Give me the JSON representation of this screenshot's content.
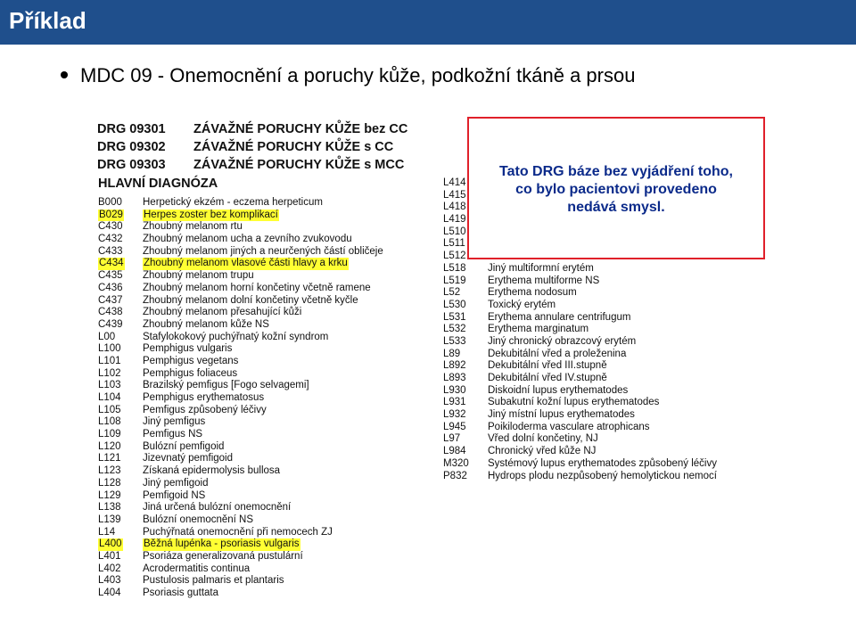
{
  "slide_title": "Příklad",
  "bullet_text": "MDC 09 - Onemocnění a poruchy kůže, podkožní tkáně a prsou",
  "drg_rows": [
    {
      "code": "DRG 09301",
      "name": "ZÁVAŽNÉ PORUCHY KŮŽE bez CC"
    },
    {
      "code": "DRG 09302",
      "name": "ZÁVAŽNÉ PORUCHY KŮŽE s CC"
    },
    {
      "code": "DRG 09303",
      "name": "ZÁVAŽNÉ PORUCHY KŮŽE s MCC"
    }
  ],
  "main_diagnosis_heading": "HLAVNÍ DIAGNÓZA",
  "left_diagnoses": [
    {
      "code": "B000",
      "name": "Herpetický ekzém - eczema herpeticum",
      "highlight": false
    },
    {
      "code": "B029",
      "name": "Herpes zoster bez komplikací",
      "highlight": true
    },
    {
      "code": "C430",
      "name": "Zhoubný melanom rtu",
      "highlight": false
    },
    {
      "code": "C432",
      "name": "Zhoubný melanom ucha a zevního zvukovodu",
      "highlight": false
    },
    {
      "code": "C433",
      "name": "Zhoubný melanom jiných a neurčených částí obličeje",
      "highlight": false
    },
    {
      "code": "C434",
      "name": "Zhoubný melanom vlasové části hlavy a krku",
      "highlight": true
    },
    {
      "code": "C435",
      "name": "Zhoubný melanom trupu",
      "highlight": false
    },
    {
      "code": "C436",
      "name": "Zhoubný melanom horní končetiny včetně ramene",
      "highlight": false
    },
    {
      "code": "C437",
      "name": "Zhoubný melanom dolní končetiny včetně kyčle",
      "highlight": false
    },
    {
      "code": "C438",
      "name": "Zhoubný melanom přesahující kůži",
      "highlight": false
    },
    {
      "code": "C439",
      "name": "Zhoubný melanom kůže NS",
      "highlight": false
    },
    {
      "code": "L00",
      "name": "Stafylokokový puchýřnatý kožní syndrom",
      "highlight": false
    },
    {
      "code": "L100",
      "name": "Pemphigus vulgaris",
      "highlight": false
    },
    {
      "code": "L101",
      "name": "Pemphigus vegetans",
      "highlight": false
    },
    {
      "code": "L102",
      "name": "Pemphigus foliaceus",
      "highlight": false
    },
    {
      "code": "L103",
      "name": "Brazilský pemfigus [Fogo selvagemi]",
      "highlight": false
    },
    {
      "code": "L104",
      "name": "Pemphigus erythematosus",
      "highlight": false
    },
    {
      "code": "L105",
      "name": "Pemfigus způsobený léčivy",
      "highlight": false
    },
    {
      "code": "L108",
      "name": "Jiný pemfigus",
      "highlight": false
    },
    {
      "code": "L109",
      "name": "Pemfigus NS",
      "highlight": false
    },
    {
      "code": "L120",
      "name": "Bulózní pemfigoid",
      "highlight": false
    },
    {
      "code": "L121",
      "name": "Jizevnatý pemfigoid",
      "highlight": false
    },
    {
      "code": "L123",
      "name": "Získaná epidermolysis bullosa",
      "highlight": false
    },
    {
      "code": "L128",
      "name": "Jiný pemfigoid",
      "highlight": false
    },
    {
      "code": "L129",
      "name": "Pemfigoid NS",
      "highlight": false
    },
    {
      "code": "L138",
      "name": "Jiná určená bulózní onemocnění",
      "highlight": false
    },
    {
      "code": "L139",
      "name": "Bulózní onemocnění NS",
      "highlight": false
    },
    {
      "code": "L14",
      "name": "Puchýřnatá onemocnění při nemocech ZJ",
      "highlight": false
    },
    {
      "code": "L400",
      "name": "Běžná lupénka - psoriasis vulgaris",
      "highlight": true
    },
    {
      "code": "L401",
      "name": "Psoriáza generalizovaná pustulární",
      "highlight": false
    },
    {
      "code": "L402",
      "name": "Acrodermatitis continua",
      "highlight": false
    },
    {
      "code": "L403",
      "name": "Pustulosis palmaris et plantaris",
      "highlight": false
    },
    {
      "code": "L404",
      "name": "Psoriasis guttata",
      "highlight": false
    }
  ],
  "right_diagnoses": [
    {
      "code": "L414",
      "name": ""
    },
    {
      "code": "L415",
      "name": ""
    },
    {
      "code": "L418",
      "name": ""
    },
    {
      "code": "L419",
      "name": ""
    },
    {
      "code": "L510",
      "name": ""
    },
    {
      "code": "L511",
      "name": ""
    },
    {
      "code": "L512",
      "name": ""
    },
    {
      "code": "L518",
      "name": "Jiný multiformní erytém"
    },
    {
      "code": "L519",
      "name": "Erythema multiforme NS"
    },
    {
      "code": "L52",
      "name": "Erythema nodosum"
    },
    {
      "code": "L530",
      "name": "Toxický erytém"
    },
    {
      "code": "L531",
      "name": "Erythema annulare centrifugum"
    },
    {
      "code": "L532",
      "name": "Erythema marginatum"
    },
    {
      "code": "L533",
      "name": "Jiný chronický obrazcový erytém"
    },
    {
      "code": "L89",
      "name": "Dekubitální vřed a proleženina"
    },
    {
      "code": "L892",
      "name": "Dekubitální vřed III.stupně"
    },
    {
      "code": "L893",
      "name": "Dekubitální vřed IV.stupně"
    },
    {
      "code": "L930",
      "name": "Diskoidní lupus erythematodes"
    },
    {
      "code": "L931",
      "name": "Subakutní kožní lupus erythematodes"
    },
    {
      "code": "L932",
      "name": "Jiný místní lupus erythematodes"
    },
    {
      "code": "L945",
      "name": "Poikiloderma vasculare atrophicans"
    },
    {
      "code": "L97",
      "name": "Vřed dolní končetiny, NJ"
    },
    {
      "code": "L984",
      "name": "Chronický vřed kůže NJ"
    },
    {
      "code": "M320",
      "name": "Systémový lupus erythematodes způsobený léčivy"
    },
    {
      "code": "P832",
      "name": "Hydrops plodu nezpůsobený hemolytickou nemocí"
    }
  ],
  "note": {
    "line1": "Tato DRG báze bez vyjádření toho,",
    "line2": "co bylo pacientovi provedeno",
    "line3": "nedává smysl."
  },
  "colors": {
    "title_bar": "#1f4f8c",
    "highlight": "#ffff33",
    "note_border": "#e0202a",
    "note_text": "#0b2a8a"
  }
}
